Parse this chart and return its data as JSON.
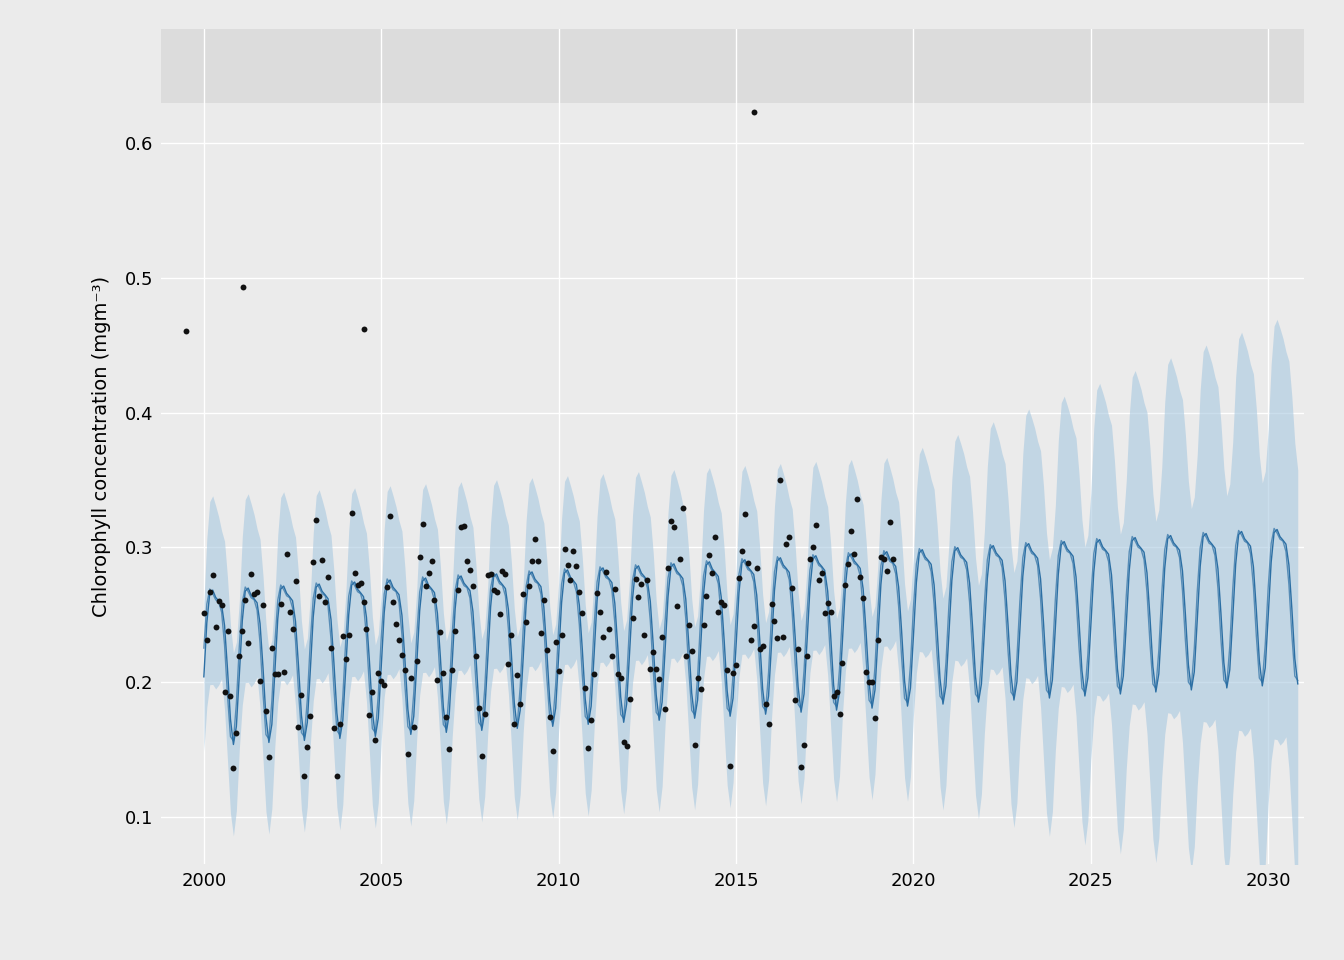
{
  "ylabel": "Chlorophyll concentration (mgm⁻³)",
  "xlim": [
    1998.8,
    2031.0
  ],
  "ylim": [
    0.065,
    0.685
  ],
  "yticks": [
    0.1,
    0.2,
    0.3,
    0.4,
    0.5,
    0.6
  ],
  "xticks": [
    2000,
    2005,
    2010,
    2015,
    2020,
    2025,
    2030
  ],
  "background_color": "#EBEBEB",
  "panel_color": "#E8E8E8",
  "grid_color": "#FFFFFF",
  "line_color": "#2C6FA4",
  "ribbon_color": "#A8C8E0",
  "dot_color": "#111111",
  "ribbon_alpha": 0.6,
  "outliers": [
    [
      1999.5,
      0.461
    ],
    [
      2001.1,
      0.493
    ],
    [
      2004.5,
      0.462
    ],
    [
      2015.5,
      0.623
    ]
  ]
}
